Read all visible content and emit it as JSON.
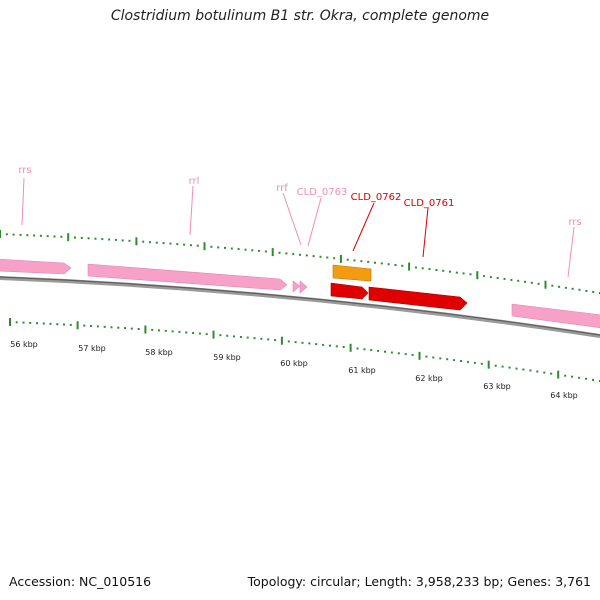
{
  "title": "Clostridium botulinum B1 str. Okra, complete genome",
  "footer": {
    "accession": "Accession: NC_010516",
    "summary": "Topology: circular; Length: 3,958,233 bp; Genes: 3,761"
  },
  "colors": {
    "backbone": "#777777",
    "tick": "#2e8b2e",
    "rrna_feature": "#f7a1c9",
    "rrna_label": "#f08cb8",
    "highlight_gene": "#e00000",
    "orange_gene": "#f39c12"
  },
  "scale_labels": [
    "56 kbp",
    "57 kbp",
    "58 kbp",
    "59 kbp",
    "60 kbp",
    "61 kbp",
    "62 kbp",
    "63 kbp",
    "64 kbp"
  ],
  "feature_labels": {
    "rrs_left": "rrs",
    "rrl": "rrl",
    "rrf": "rrf",
    "cld_0763": "CLD_0763",
    "cld_0762": "CLD_0762",
    "cld_0761": "CLD_0761",
    "rrs_right": "rrs"
  }
}
